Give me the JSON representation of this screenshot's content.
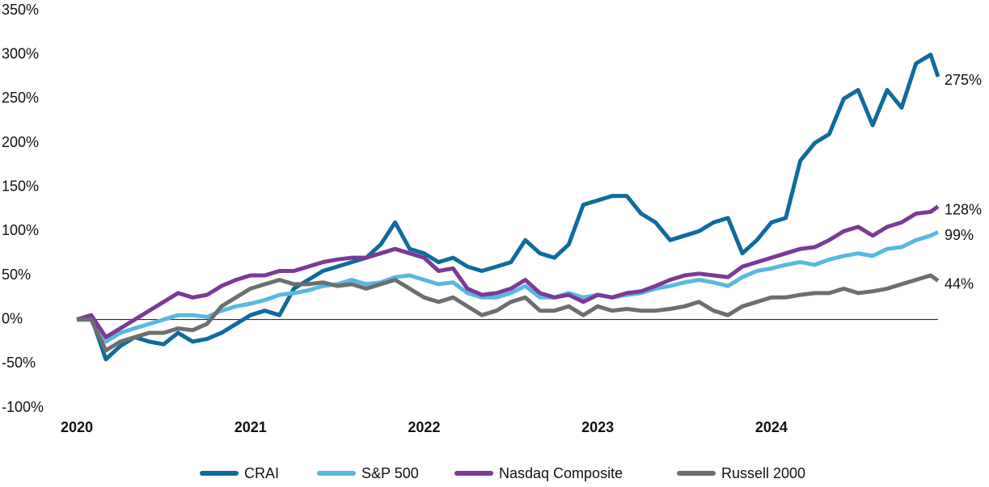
{
  "chart_data": {
    "type": "line",
    "x": [
      2020,
      2020.083,
      2020.167,
      2020.25,
      2020.333,
      2020.417,
      2020.5,
      2020.583,
      2020.667,
      2020.75,
      2020.833,
      2020.917,
      2021,
      2021.083,
      2021.167,
      2021.25,
      2021.333,
      2021.417,
      2021.5,
      2021.583,
      2021.667,
      2021.75,
      2021.833,
      2021.917,
      2022,
      2022.083,
      2022.167,
      2022.25,
      2022.333,
      2022.417,
      2022.5,
      2022.583,
      2022.667,
      2022.75,
      2022.833,
      2022.917,
      2023,
      2023.083,
      2023.167,
      2023.25,
      2023.333,
      2023.417,
      2023.5,
      2023.583,
      2023.667,
      2023.75,
      2023.833,
      2023.917,
      2024,
      2024.083,
      2024.167,
      2024.25,
      2024.333,
      2024.417,
      2024.5,
      2024.583,
      2024.667,
      2024.75,
      2024.833,
      2024.917,
      2024.96
    ],
    "series": [
      {
        "name": "CRAI",
        "color": "#0f6b9c",
        "values": [
          0,
          3,
          -45,
          -30,
          -20,
          -25,
          -28,
          -15,
          -25,
          -22,
          -15,
          -5,
          5,
          10,
          5,
          35,
          45,
          55,
          60,
          65,
          70,
          85,
          110,
          80,
          75,
          65,
          70,
          60,
          55,
          60,
          65,
          90,
          75,
          70,
          85,
          130,
          135,
          140,
          140,
          120,
          110,
          90,
          95,
          100,
          110,
          115,
          75,
          90,
          110,
          115,
          180,
          200,
          210,
          250,
          260,
          220,
          260,
          240,
          290,
          300,
          275
        ],
        "value_labels": [
          null,
          null,
          null,
          null,
          null,
          null,
          null,
          null,
          null,
          null,
          null,
          null,
          null,
          null,
          null,
          null,
          null,
          null,
          null,
          null,
          null,
          null,
          null,
          null,
          null,
          null,
          null,
          null,
          null,
          null,
          null,
          null,
          null,
          null,
          null,
          null,
          null,
          null,
          null,
          null,
          null,
          null,
          null,
          null,
          null,
          null,
          null,
          null,
          null,
          null,
          null,
          null,
          null,
          null,
          null,
          null,
          null,
          null,
          null,
          null,
          "275%"
        ]
      },
      {
        "name": "S&P 500",
        "color": "#5ab8e0",
        "values": [
          0,
          2,
          -25,
          -15,
          -10,
          -5,
          0,
          5,
          5,
          3,
          10,
          15,
          18,
          22,
          28,
          30,
          33,
          38,
          40,
          45,
          40,
          42,
          48,
          50,
          45,
          40,
          42,
          30,
          25,
          25,
          30,
          38,
          25,
          25,
          30,
          25,
          28,
          25,
          28,
          30,
          35,
          38,
          42,
          45,
          42,
          38,
          48,
          55,
          58,
          62,
          65,
          62,
          68,
          72,
          75,
          72,
          80,
          82,
          90,
          95,
          99
        ],
        "value_labels": [
          null,
          null,
          null,
          null,
          null,
          null,
          null,
          null,
          null,
          null,
          null,
          null,
          null,
          null,
          null,
          null,
          null,
          null,
          null,
          null,
          null,
          null,
          null,
          null,
          null,
          null,
          null,
          null,
          null,
          null,
          null,
          null,
          null,
          null,
          null,
          null,
          null,
          null,
          null,
          null,
          null,
          null,
          null,
          null,
          null,
          null,
          null,
          null,
          null,
          null,
          null,
          null,
          null,
          null,
          null,
          null,
          null,
          null,
          null,
          null,
          "99%"
        ]
      },
      {
        "name": "Nasdaq Composite",
        "color": "#7a3a96",
        "values": [
          0,
          5,
          -20,
          -10,
          0,
          10,
          20,
          30,
          25,
          28,
          38,
          45,
          50,
          50,
          55,
          55,
          60,
          65,
          68,
          70,
          70,
          75,
          80,
          75,
          70,
          55,
          58,
          35,
          28,
          30,
          35,
          45,
          30,
          25,
          28,
          20,
          28,
          25,
          30,
          32,
          38,
          45,
          50,
          52,
          50,
          48,
          60,
          65,
          70,
          75,
          80,
          82,
          90,
          100,
          105,
          95,
          105,
          110,
          120,
          122,
          128
        ],
        "value_labels": [
          null,
          null,
          null,
          null,
          null,
          null,
          null,
          null,
          null,
          null,
          null,
          null,
          null,
          null,
          null,
          null,
          null,
          null,
          null,
          null,
          null,
          null,
          null,
          null,
          null,
          null,
          null,
          null,
          null,
          null,
          null,
          null,
          null,
          null,
          null,
          null,
          null,
          null,
          null,
          null,
          null,
          null,
          null,
          null,
          null,
          null,
          null,
          null,
          null,
          null,
          null,
          null,
          null,
          null,
          null,
          null,
          null,
          null,
          null,
          null,
          "128%"
        ]
      },
      {
        "name": "Russell 2000",
        "color": "#6d6e70",
        "values": [
          0,
          0,
          -35,
          -25,
          -20,
          -15,
          -15,
          -10,
          -12,
          -5,
          15,
          25,
          35,
          40,
          45,
          40,
          40,
          42,
          38,
          40,
          35,
          40,
          45,
          35,
          25,
          20,
          25,
          15,
          5,
          10,
          20,
          25,
          10,
          10,
          15,
          5,
          15,
          10,
          12,
          10,
          10,
          12,
          15,
          20,
          10,
          5,
          15,
          20,
          25,
          25,
          28,
          30,
          30,
          35,
          30,
          32,
          35,
          40,
          45,
          50,
          44
        ],
        "value_labels": [
          null,
          null,
          null,
          null,
          null,
          null,
          null,
          null,
          null,
          null,
          null,
          null,
          null,
          null,
          null,
          null,
          null,
          null,
          null,
          null,
          null,
          null,
          null,
          null,
          null,
          null,
          null,
          null,
          null,
          null,
          null,
          null,
          null,
          null,
          null,
          null,
          null,
          null,
          null,
          null,
          null,
          null,
          null,
          null,
          null,
          null,
          null,
          null,
          null,
          null,
          null,
          null,
          null,
          null,
          null,
          null,
          null,
          null,
          null,
          null,
          "44%"
        ]
      }
    ],
    "xlim": [
      2020,
      2024.96
    ],
    "xticks": [
      2020,
      2021,
      2022,
      2023,
      2024
    ],
    "ylim": [
      -100,
      350
    ],
    "yticks": [
      {
        "value": -100,
        "label": "-100%"
      },
      {
        "value": -50,
        "label": "-50%"
      },
      {
        "value": 0,
        "label": "0%"
      },
      {
        "value": 50,
        "label": "50%"
      },
      {
        "value": 100,
        "label": "100%"
      },
      {
        "value": 150,
        "label": "150%"
      },
      {
        "value": 200,
        "label": "200%"
      },
      {
        "value": 250,
        "label": "250%"
      },
      {
        "value": 300,
        "label": "300%"
      },
      {
        "value": 350,
        "label": "350%"
      }
    ],
    "legend": "bottom"
  }
}
